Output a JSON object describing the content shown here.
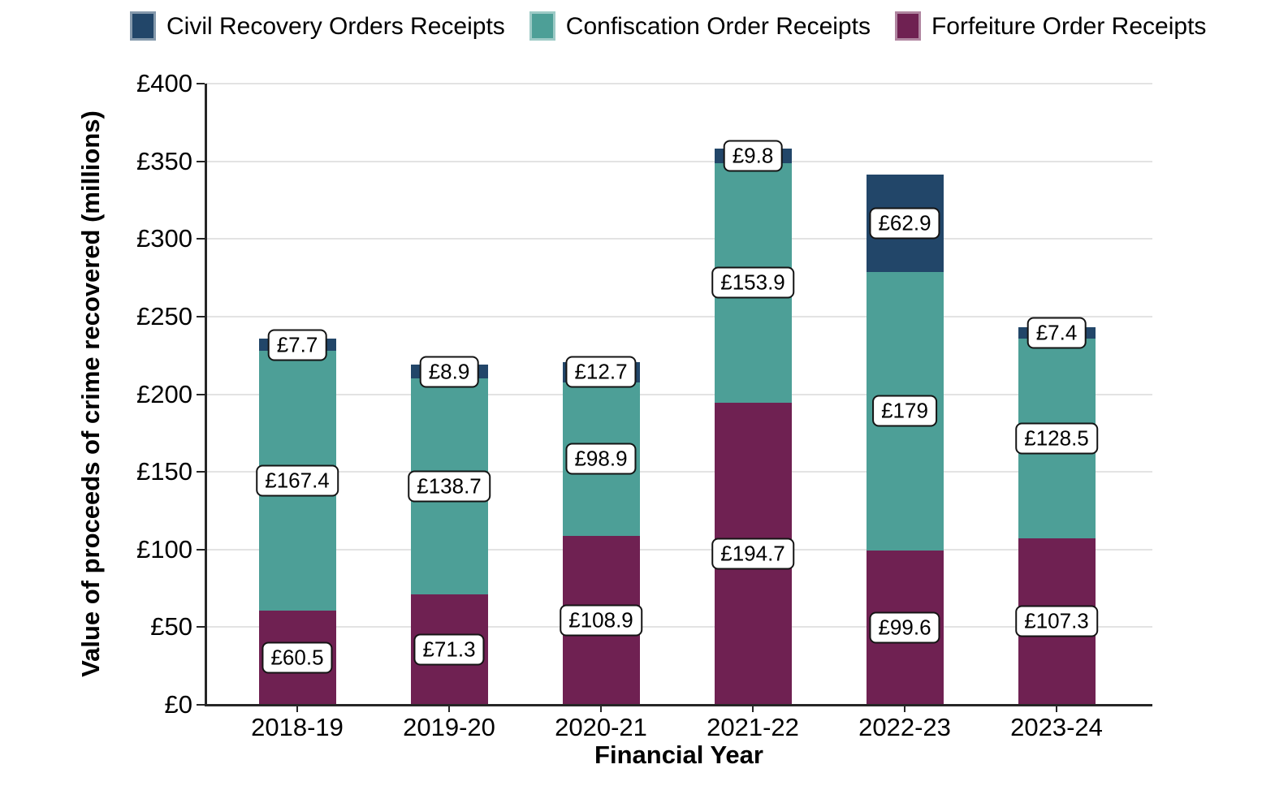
{
  "legend": {
    "items": [
      {
        "label": "Civil Recovery Orders Receipts",
        "color": "#224669"
      },
      {
        "label": "Confiscation Order Receipts",
        "color": "#4d9f97"
      },
      {
        "label": "Forfeiture Order Receipts",
        "color": "#6f2152"
      }
    ]
  },
  "chart_data": {
    "type": "bar",
    "stacked": true,
    "title": "",
    "xlabel": "Financial Year",
    "ylabel": "Value of proceeds of crime recovered (millions)",
    "categories": [
      "2018-19",
      "2019-20",
      "2020-21",
      "2021-22",
      "2022-23",
      "2023-24"
    ],
    "series": [
      {
        "name": "Forfeiture Order Receipts",
        "color": "#6f2152",
        "values": [
          60.5,
          71.3,
          108.9,
          194.7,
          99.6,
          107.3
        ],
        "labels": [
          "£60.5",
          "£71.3",
          "£108.9",
          "£194.7",
          "£99.6",
          "£107.3"
        ]
      },
      {
        "name": "Confiscation Order Receipts",
        "color": "#4d9f97",
        "values": [
          167.4,
          138.7,
          98.9,
          153.9,
          179,
          128.5
        ],
        "labels": [
          "£167.4",
          "£138.7",
          "£98.9",
          "£153.9",
          "£179",
          "£128.5"
        ]
      },
      {
        "name": "Civil Recovery Orders Receipts",
        "color": "#224669",
        "values": [
          7.7,
          8.9,
          12.7,
          9.8,
          62.9,
          7.4
        ],
        "labels": [
          "£7.7",
          "£8.9",
          "£12.7",
          "£9.8",
          "£62.9",
          "£7.4"
        ]
      }
    ],
    "ylim": [
      0,
      400
    ],
    "ytick_step": 50,
    "ytick_labels": [
      "£0",
      "£50",
      "£100",
      "£150",
      "£200",
      "£250",
      "£300",
      "£350",
      "£400"
    ],
    "grid": "horizontal",
    "legend_position": "top"
  }
}
